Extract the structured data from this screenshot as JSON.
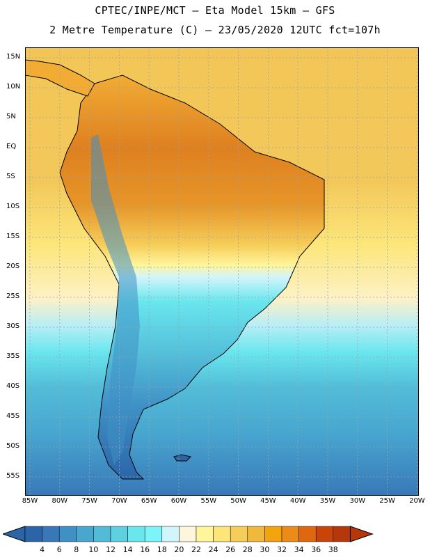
{
  "title_line1": "CPTEC/INPE/MCT –  Eta Model 15km – GFS",
  "title_line2": "2 Metre Temperature (C) – 23/05/2020 12UTC fct=107h",
  "lat_labels": [
    "15N",
    "10N",
    "5N",
    "EQ",
    "5S",
    "10S",
    "15S",
    "20S",
    "25S",
    "30S",
    "35S",
    "40S",
    "45S",
    "50S",
    "55S"
  ],
  "lon_labels": [
    "85W",
    "80W",
    "75W",
    "70W",
    "65W",
    "60W",
    "55W",
    "50W",
    "45W",
    "40W",
    "35W",
    "30W",
    "25W",
    "20W"
  ],
  "colorbar": {
    "labels": [
      "4",
      "6",
      "8",
      "10",
      "12",
      "14",
      "16",
      "18",
      "20",
      "22",
      "24",
      "26",
      "28",
      "30",
      "32",
      "34",
      "36",
      "38"
    ],
    "colors": [
      "#2b65a8",
      "#3878b8",
      "#3f90c5",
      "#48a6cf",
      "#52bcd8",
      "#5ed0e0",
      "#6ae6ee",
      "#7cf5fa",
      "#d2f5fb",
      "#fdf6dc",
      "#fff59a",
      "#fce67a",
      "#f6cd5a",
      "#f0b93d",
      "#f2a40d",
      "#ec8c18",
      "#de6810",
      "#c84408",
      "#b5380a"
    ],
    "arrow_left_color": "#2b65a8",
    "arrow_right_color": "#b5380a"
  },
  "map_colors": {
    "ocean_warm": "#f6cd5a",
    "ocean_mid": "#fce67a",
    "ocean_cool": "#5ed0e0",
    "ocean_cold": "#3878b8",
    "amazon": "#de8a25",
    "coastline": "#000000"
  }
}
